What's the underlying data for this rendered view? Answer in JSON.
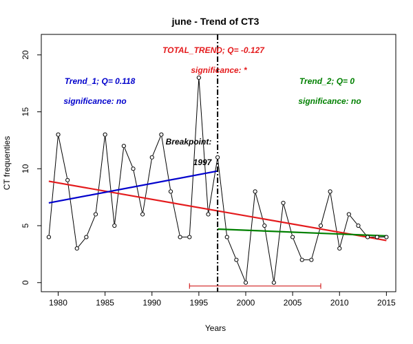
{
  "chart_data": {
    "type": "line",
    "title": "june  -  Trend of CT3",
    "xlabel": "Years",
    "ylabel": "CT frequenties",
    "xlim": [
      1978.2,
      2016.0
    ],
    "ylim": [
      -0.8,
      21.8
    ],
    "x_ticks": [
      1980,
      1985,
      1990,
      1995,
      2000,
      2005,
      2010,
      2015
    ],
    "y_ticks": [
      0,
      5,
      10,
      15,
      20
    ],
    "grid": false,
    "legend": "none",
    "series": [
      {
        "x": [
          1979,
          1980,
          1981,
          1982,
          1983,
          1984,
          1985,
          1986,
          1987,
          1988,
          1989,
          1990,
          1991,
          1992,
          1993,
          1994,
          1995,
          1996,
          1997,
          1998,
          1999,
          2000,
          2001,
          2002,
          2003,
          2004,
          2005,
          2006,
          2007,
          2008,
          2009,
          2010,
          2011,
          2012,
          2013,
          2014,
          2015
        ],
        "values": [
          4,
          13,
          9,
          3,
          4,
          6,
          13,
          5,
          12,
          10,
          6,
          11,
          13,
          8,
          4,
          4,
          18,
          6,
          11,
          4,
          2,
          0,
          8,
          5,
          0,
          7,
          4,
          2,
          2,
          5,
          8,
          3,
          6,
          5,
          4,
          4,
          4
        ],
        "color": "#000000"
      }
    ],
    "trend_lines": [
      {
        "x": [
          1979,
          2015
        ],
        "values": [
          8.9,
          3.7
        ],
        "color": "#e41a1c"
      },
      {
        "x": [
          1979,
          1997
        ],
        "values": [
          7.0,
          9.8
        ],
        "color": "#0000cc"
      },
      {
        "x": [
          1997,
          2015
        ],
        "values": [
          4.7,
          4.1
        ],
        "color": "#008000"
      }
    ],
    "breakpoint": {
      "x": 1997,
      "interval": [
        1994,
        2008
      ],
      "interval_y": -0.3
    },
    "annotations": {
      "total_trend": "TOTAL_TREND;  Q=   -0.127",
      "total_significance": "significance:   *",
      "trend1": "Trend_1;  Q=   0.118",
      "trend1_significance": "significance:   no",
      "trend2": "Trend_2;  Q=   0",
      "trend2_significance": "significance:   no",
      "breakpoint_label": "Breakpoint:",
      "breakpoint_year": "1997"
    },
    "colors": {
      "total": "#e41a1c",
      "trend1": "#0000cc",
      "trend2": "#008000",
      "ci": "#cc0000"
    }
  }
}
